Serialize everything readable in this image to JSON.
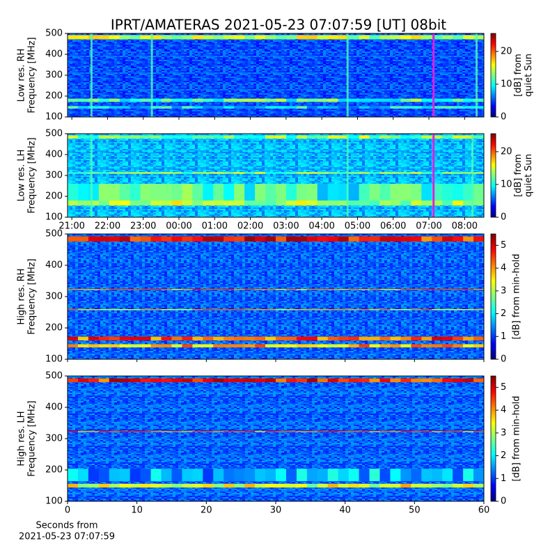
{
  "chart_data": [
    {
      "type": "heatmap",
      "title": "IPRT/AMATERAS 2021-05-23 07:07:59 [UT]   08bit",
      "ylabel": [
        "Low res. RH",
        "Frequency [MHz]"
      ],
      "ylim": [
        100,
        500
      ],
      "yticks": [
        100,
        200,
        300,
        400,
        500
      ],
      "xlim": [
        20.88,
        32.54
      ],
      "xticks": [
        {
          "value": 21,
          "label": "21:00"
        },
        {
          "value": 22,
          "label": "22:00"
        },
        {
          "value": 23,
          "label": "23:00"
        },
        {
          "value": 24,
          "label": "00:00"
        },
        {
          "value": 25,
          "label": "01:00"
        },
        {
          "value": 26,
          "label": "02:00"
        },
        {
          "value": 27,
          "label": "03:00"
        },
        {
          "value": 28,
          "label": "04:00"
        },
        {
          "value": 29,
          "label": "05:00"
        },
        {
          "value": 30,
          "label": "06:00"
        },
        {
          "value": 31,
          "label": "07:00"
        },
        {
          "value": 32,
          "label": "08:00"
        }
      ],
      "show_xtick_labels": false,
      "cursor_x": 31.13,
      "cursor_color": "#e020e0",
      "colormap": "jet",
      "clim": [
        0,
        25.5
      ],
      "cticks": [
        0,
        10,
        20
      ],
      "clabel": [
        "[dB] from",
        "quiet Sun"
      ]
    },
    {
      "type": "heatmap",
      "ylabel": [
        "Low res. LH",
        "Frequency [MHz]"
      ],
      "ylim": [
        100,
        500
      ],
      "yticks": [
        100,
        200,
        300,
        400,
        500
      ],
      "xlim": [
        20.88,
        32.54
      ],
      "xticks": [
        {
          "value": 21,
          "label": "21:00"
        },
        {
          "value": 22,
          "label": "22:00"
        },
        {
          "value": 23,
          "label": "23:00"
        },
        {
          "value": 24,
          "label": "00:00"
        },
        {
          "value": 25,
          "label": "01:00"
        },
        {
          "value": 26,
          "label": "02:00"
        },
        {
          "value": 27,
          "label": "03:00"
        },
        {
          "value": 28,
          "label": "04:00"
        },
        {
          "value": 29,
          "label": "05:00"
        },
        {
          "value": 30,
          "label": "06:00"
        },
        {
          "value": 31,
          "label": "07:00"
        },
        {
          "value": 32,
          "label": "08:00"
        }
      ],
      "show_xtick_labels": true,
      "cursor_x": 31.13,
      "cursor_color": "#e020e0",
      "colormap": "jet",
      "clim": [
        0,
        25.5
      ],
      "cticks": [
        0,
        10,
        20
      ],
      "clabel": [
        "[dB] from",
        "quiet Sun"
      ]
    },
    {
      "type": "heatmap",
      "ylabel": [
        "High res. RH",
        "Frequency [MHz]"
      ],
      "ylim": [
        100,
        500
      ],
      "yticks": [
        100,
        200,
        300,
        400,
        500
      ],
      "xlim": [
        0,
        60
      ],
      "xticks": [
        0,
        10,
        20,
        30,
        40,
        50,
        60
      ],
      "show_xtick_labels": false,
      "colormap": "jet",
      "clim": [
        0,
        5.5
      ],
      "cticks": [
        0,
        1,
        2,
        3,
        4,
        5
      ],
      "clabel": [
        "[dB] from min-hold"
      ]
    },
    {
      "type": "heatmap",
      "ylabel": [
        "High res. LH",
        "Frequency [MHz]"
      ],
      "ylim": [
        100,
        500
      ],
      "yticks": [
        100,
        200,
        300,
        400,
        500
      ],
      "xlim": [
        0,
        60
      ],
      "xticks": [
        0,
        10,
        20,
        30,
        40,
        50,
        60
      ],
      "show_xtick_labels": true,
      "xlabel": [
        "Seconds from",
        "2021-05-23 07:07:59"
      ],
      "colormap": "jet",
      "clim": [
        0,
        5.5
      ],
      "cticks": [
        0,
        1,
        2,
        3,
        4,
        5
      ],
      "clabel": [
        "[dB] from min-hold"
      ]
    }
  ]
}
